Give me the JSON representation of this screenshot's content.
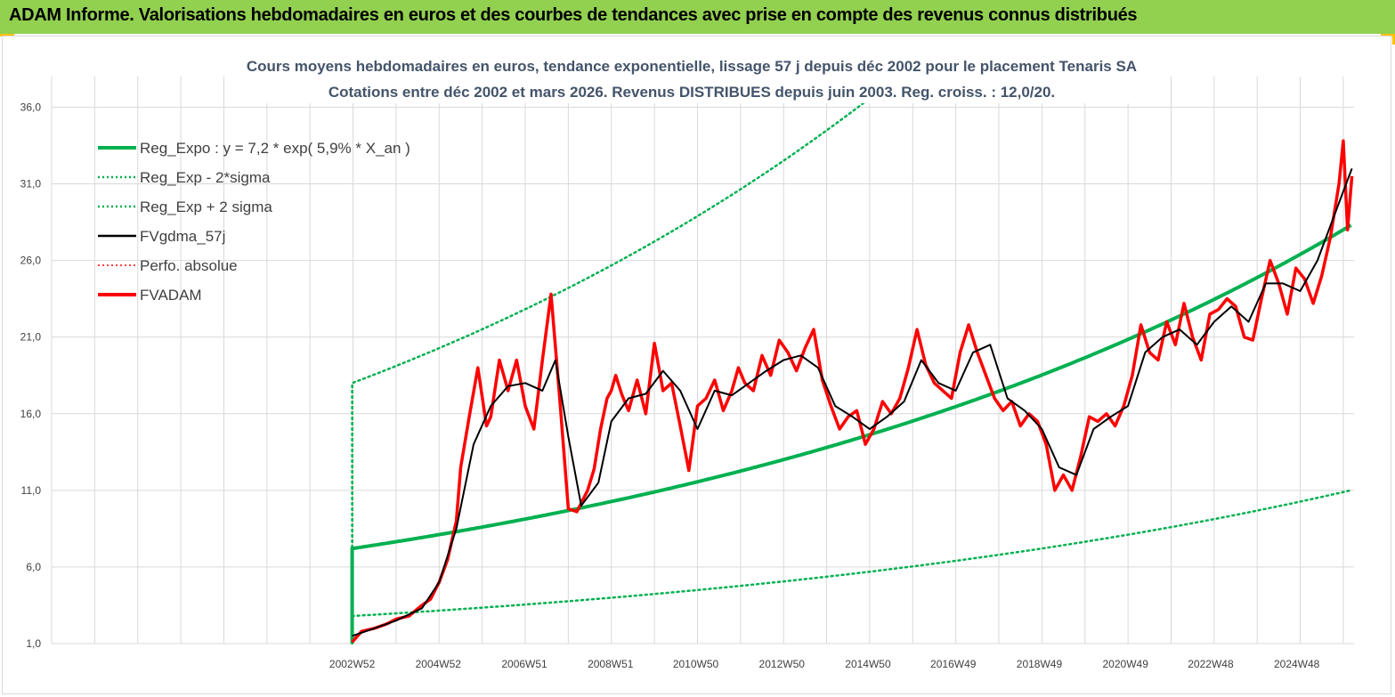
{
  "header": {
    "title": "ADAM Informe. Valorisations hebdomadaires en euros et des courbes de tendances avec prise en compte des revenus connus distribués"
  },
  "colors": {
    "header_bg": "#92d050",
    "accent_orange": "#ffc000",
    "trend_green": "#00b050",
    "smooth_black": "#000000",
    "price_red": "#ff0000",
    "title_slate": "#44546a"
  },
  "chart_data": {
    "type": "line",
    "title_line1": "Cours moyens hebdomadaires en euros, tendance exponentielle, lissage 57 j depuis déc 2002 pour le placement Tenaris SA",
    "title_line2": "Cotations entre déc 2002 et mars 2026. Revenus DISTRIBUES depuis juin 2003. Reg. croiss. : 12,0/20.",
    "xlabel": "",
    "ylabel": "",
    "x_tick_labels": [
      "2002W52",
      "2004W52",
      "2006W51",
      "2008W51",
      "2010W50",
      "2012W50",
      "2014W50",
      "2016W49",
      "2018W49",
      "2020W49",
      "2022W48",
      "2024W48"
    ],
    "x_tick_years": [
      2002.98,
      2004.98,
      2006.98,
      2008.98,
      2010.96,
      2012.96,
      2014.96,
      2016.94,
      2018.94,
      2020.94,
      2022.92,
      2024.92
    ],
    "x_range": [
      1996.0,
      2026.25
    ],
    "y_tick_labels": [
      "1,0",
      "6,0",
      "11,0",
      "16,0",
      "21,0",
      "26,0",
      "31,0",
      "36,0"
    ],
    "y_ticks": [
      1,
      6,
      11,
      16,
      21,
      26,
      31,
      36
    ],
    "ylim": [
      1,
      38
    ],
    "grid": true,
    "legend_position": "top-left",
    "legend": [
      {
        "label": "Reg_Expo : y = 7,2 * exp( 5,9% *  X_an )",
        "style": "solid-thick",
        "color": "#00b050"
      },
      {
        "label": "Reg_Exp - 2*sigma",
        "style": "dotted",
        "color": "#00b050"
      },
      {
        "label": "Reg_Exp + 2 sigma",
        "style": "dotted",
        "color": "#00b050"
      },
      {
        "label": "FVgdma_57j",
        "style": "solid",
        "color": "#000000"
      },
      {
        "label": "Perfo. absolue",
        "style": "dotted",
        "color": "#ff0000"
      },
      {
        "label": "FVADAM",
        "style": "solid-thick",
        "color": "#ff0000"
      }
    ],
    "regression": {
      "coef": 7.2,
      "rate": 0.059,
      "x_start": 2002.98,
      "x_end": 2026.2,
      "lower_at_start": 2.8,
      "upper_at_start": 18.0
    },
    "series": [
      {
        "name": "FVADAM",
        "x": [
          2002.98,
          2003.2,
          2003.5,
          2003.8,
          2004.0,
          2004.3,
          2004.6,
          2004.8,
          2005.0,
          2005.2,
          2005.4,
          2005.5,
          2005.7,
          2005.9,
          2006.1,
          2006.2,
          2006.4,
          2006.6,
          2006.8,
          2007.0,
          2007.2,
          2007.4,
          2007.6,
          2007.8,
          2008.0,
          2008.2,
          2008.45,
          2008.6,
          2008.75,
          2008.9,
          2009.0,
          2009.1,
          2009.25,
          2009.4,
          2009.6,
          2009.8,
          2010.0,
          2010.2,
          2010.4,
          2010.6,
          2010.8,
          2011.0,
          2011.2,
          2011.4,
          2011.6,
          2011.8,
          2011.95,
          2012.1,
          2012.3,
          2012.5,
          2012.7,
          2012.9,
          2013.1,
          2013.3,
          2013.5,
          2013.7,
          2013.9,
          2014.1,
          2014.3,
          2014.5,
          2014.7,
          2014.9,
          2015.1,
          2015.3,
          2015.5,
          2015.7,
          2015.9,
          2016.1,
          2016.3,
          2016.5,
          2016.7,
          2016.9,
          2017.1,
          2017.3,
          2017.5,
          2017.7,
          2017.9,
          2018.1,
          2018.3,
          2018.5,
          2018.7,
          2018.9,
          2019.1,
          2019.3,
          2019.5,
          2019.7,
          2019.9,
          2020.1,
          2020.3,
          2020.5,
          2020.7,
          2020.9,
          2021.1,
          2021.3,
          2021.5,
          2021.7,
          2021.9,
          2022.1,
          2022.3,
          2022.5,
          2022.7,
          2022.9,
          2023.1,
          2023.3,
          2023.5,
          2023.7,
          2023.9,
          2024.1,
          2024.3,
          2024.5,
          2024.7,
          2024.9,
          2025.1,
          2025.3,
          2025.5,
          2025.7,
          2025.9,
          2026.0,
          2026.1,
          2026.2
        ],
        "values": [
          1.1,
          1.8,
          2.0,
          2.3,
          2.6,
          2.8,
          3.5,
          3.9,
          5.0,
          6.5,
          9.0,
          12.5,
          15.8,
          19.0,
          15.2,
          15.8,
          19.5,
          17.5,
          19.5,
          16.5,
          15.0,
          19.5,
          23.8,
          17.0,
          9.8,
          9.6,
          11.0,
          12.4,
          15.0,
          17.0,
          17.5,
          18.5,
          17.2,
          16.2,
          18.2,
          16.0,
          20.6,
          17.5,
          18.0,
          15.2,
          12.3,
          16.5,
          17.0,
          18.2,
          16.2,
          17.5,
          19.0,
          18.0,
          17.5,
          19.8,
          18.5,
          20.8,
          20.0,
          18.8,
          20.3,
          21.5,
          18.2,
          16.5,
          15.0,
          15.8,
          16.2,
          14.0,
          15.0,
          16.8,
          16.0,
          17.0,
          19.0,
          21.5,
          19.2,
          18.0,
          17.5,
          17.0,
          20.0,
          21.8,
          20.0,
          18.5,
          17.0,
          16.2,
          16.8,
          15.2,
          16.0,
          15.5,
          14.0,
          11.0,
          12.0,
          11.0,
          13.2,
          15.8,
          15.5,
          16.0,
          15.2,
          16.5,
          18.5,
          21.8,
          20.0,
          19.5,
          22.0,
          20.5,
          23.2,
          21.0,
          19.5,
          22.5,
          22.8,
          23.5,
          23.0,
          21.0,
          20.8,
          23.5,
          26.0,
          24.5,
          22.5,
          25.5,
          24.8,
          23.2,
          25.0,
          27.5,
          31.0,
          33.8,
          28.0,
          31.5
        ]
      },
      {
        "name": "FVgdma_57j",
        "x": [
          2002.98,
          2003.5,
          2004.0,
          2004.6,
          2005.0,
          2005.4,
          2005.8,
          2006.2,
          2006.6,
          2007.0,
          2007.4,
          2007.7,
          2008.0,
          2008.3,
          2008.7,
          2009.0,
          2009.4,
          2009.8,
          2010.2,
          2010.6,
          2011.0,
          2011.4,
          2011.8,
          2012.2,
          2012.6,
          2013.0,
          2013.4,
          2013.8,
          2014.2,
          2014.6,
          2015.0,
          2015.4,
          2015.8,
          2016.2,
          2016.6,
          2017.0,
          2017.4,
          2017.8,
          2018.2,
          2018.6,
          2019.0,
          2019.4,
          2019.8,
          2020.2,
          2020.6,
          2021.0,
          2021.4,
          2021.8,
          2022.2,
          2022.6,
          2023.0,
          2023.4,
          2023.8,
          2024.2,
          2024.6,
          2025.0,
          2025.4,
          2025.8,
          2026.2
        ],
        "values": [
          1.5,
          2.0,
          2.5,
          3.3,
          5.0,
          8.5,
          14.0,
          16.5,
          17.8,
          18.0,
          17.5,
          19.5,
          14.5,
          10.0,
          11.5,
          15.5,
          17.0,
          17.3,
          18.8,
          17.5,
          15.0,
          17.5,
          17.2,
          18.0,
          18.8,
          19.5,
          19.8,
          19.0,
          16.5,
          15.8,
          15.0,
          15.8,
          16.8,
          19.5,
          18.0,
          17.5,
          20.0,
          20.5,
          17.0,
          16.2,
          15.0,
          12.5,
          12.0,
          15.0,
          15.8,
          16.5,
          20.0,
          21.0,
          21.5,
          20.5,
          22.0,
          23.0,
          22.0,
          24.5,
          24.5,
          24.0,
          26.0,
          29.0,
          32.0
        ]
      }
    ]
  }
}
